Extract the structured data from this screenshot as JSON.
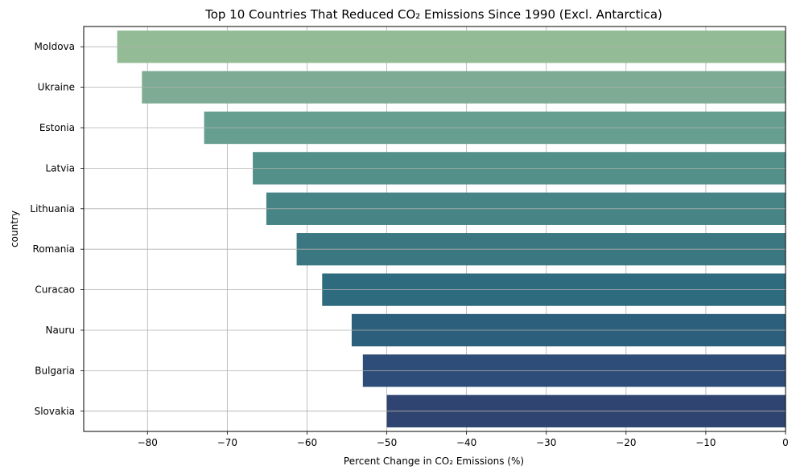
{
  "chart_data": {
    "type": "bar",
    "orientation": "horizontal",
    "title": "Top 10 Countries That Reduced CO₂ Emissions Since 1990 (Excl. Antarctica)",
    "xlabel": "Percent Change in CO₂ Emissions (%)",
    "ylabel": "country",
    "xlim": [
      -88,
      0
    ],
    "xticks": [
      -80,
      -70,
      -60,
      -50,
      -40,
      -30,
      -20,
      -10,
      0
    ],
    "xtick_labels": [
      "−80",
      "−70",
      "−60",
      "−50",
      "−40",
      "−30",
      "−20",
      "−10",
      "0"
    ],
    "grid": true,
    "categories": [
      "Moldova",
      "Ukraine",
      "Estonia",
      "Latvia",
      "Lithuania",
      "Romania",
      "Curacao",
      "Nauru",
      "Bulgaria",
      "Slovakia"
    ],
    "values": [
      -83.8,
      -80.7,
      -72.9,
      -66.8,
      -65.1,
      -61.3,
      -58.1,
      -54.4,
      -53.0,
      -50.0
    ],
    "colors": [
      "#93bb95",
      "#7dab93",
      "#669e8f",
      "#53908a",
      "#468485",
      "#3b7781",
      "#2f6b7e",
      "#2c5f7c",
      "#2e4d78",
      "#2f4470"
    ]
  }
}
